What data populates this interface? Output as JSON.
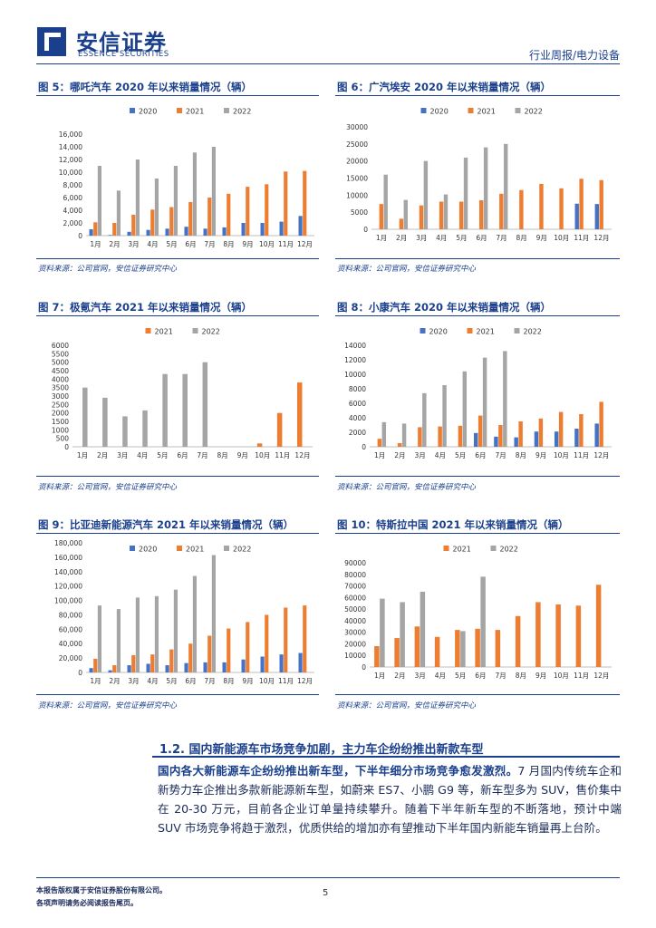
{
  "header": {
    "logo_cn": "安信证券",
    "logo_en": "ESSENCE SECURITIES",
    "report_type": "行业周报/电力设备"
  },
  "colors": {
    "s2020": "#4472c4",
    "s2021": "#ed7d31",
    "s2022": "#a5a5a5",
    "brand": "#1a3f8c"
  },
  "figures": [
    {
      "title": "图 5：哪吒汽车 2020 年以来销量情况（辆）",
      "source": "资料来源：公司官网，安信证券研究中心"
    },
    {
      "title": "图 6：广汽埃安 2020 年以来销量情况（辆）",
      "source": "资料来源：公司官网，安信证券研究中心"
    },
    {
      "title": "图 7：极氪汽车 2021 年以来销量情况（辆）",
      "source": "资料来源：公司官网，安信证券研究中心"
    },
    {
      "title": "图 8：小康汽车 2020 年以来销量情况（辆）",
      "source": "资料来源：公司官网，安信证券研究中心"
    },
    {
      "title": "图 9：比亚迪新能源汽车 2021 年以来销量情况（辆）",
      "source": "资料来源：公司官网，安信证券研究中心"
    },
    {
      "title": "图 10：特斯拉中国 2021 年以来销量情况（辆）",
      "source": "资料来源：公司官网，安信证券研究中心"
    }
  ],
  "chart_data": [
    {
      "type": "bar",
      "categories": [
        "1月",
        "2月",
        "3月",
        "4月",
        "5月",
        "6月",
        "7月",
        "8月",
        "9月",
        "10月",
        "11月",
        "12月"
      ],
      "yticks": [
        "0",
        "2,000",
        "4,000",
        "6,000",
        "8,000",
        "10,000",
        "12,000",
        "14,000",
        "16,000"
      ],
      "ylim": [
        0,
        16000
      ],
      "series": [
        {
          "name": "2020",
          "values": [
            1000,
            100,
            600,
            900,
            1100,
            1400,
            1100,
            1300,
            2000,
            2000,
            2200,
            3100
          ]
        },
        {
          "name": "2021",
          "values": [
            2100,
            2000,
            3300,
            4100,
            4500,
            5300,
            6000,
            6600,
            7700,
            8100,
            10100,
            10200
          ]
        },
        {
          "name": "2022",
          "values": [
            11000,
            7100,
            12000,
            9000,
            11000,
            13100,
            14000,
            null,
            null,
            null,
            null,
            null
          ]
        }
      ]
    },
    {
      "type": "bar",
      "categories": [
        "1月",
        "2月",
        "3月",
        "4月",
        "5月",
        "6月",
        "7月",
        "8月",
        "9月",
        "10月",
        "11月",
        "12月"
      ],
      "yticks": [
        "0",
        "5000",
        "10000",
        "15000",
        "20000",
        "25000",
        "30000"
      ],
      "ylim": [
        0,
        30000
      ],
      "series": [
        {
          "name": "2020",
          "values": [
            null,
            null,
            null,
            null,
            null,
            null,
            null,
            null,
            null,
            null,
            7500,
            7400
          ]
        },
        {
          "name": "2021",
          "values": [
            7400,
            3100,
            7000,
            8100,
            8100,
            8500,
            10400,
            11500,
            13300,
            12000,
            14800,
            14400
          ]
        },
        {
          "name": "2022",
          "values": [
            16000,
            8600,
            20000,
            10200,
            21000,
            24000,
            25000,
            null,
            null,
            null,
            null,
            null
          ]
        }
      ]
    },
    {
      "type": "bar",
      "categories": [
        "1月",
        "2月",
        "3月",
        "4月",
        "5月",
        "6月",
        "7月",
        "8月",
        "9月",
        "10月",
        "11月",
        "12月"
      ],
      "yticks": [
        "0",
        "500",
        "1000",
        "1500",
        "2000",
        "2500",
        "3000",
        "3500",
        "4000",
        "4500",
        "5000",
        "5500",
        "6000"
      ],
      "ylim": [
        0,
        6000
      ],
      "series": [
        {
          "name": "2021",
          "values": [
            null,
            null,
            null,
            null,
            null,
            null,
            null,
            null,
            null,
            200,
            2000,
            3800
          ]
        },
        {
          "name": "2022",
          "values": [
            3500,
            2900,
            1800,
            2150,
            4300,
            4300,
            5000,
            null,
            null,
            null,
            null,
            null
          ]
        }
      ]
    },
    {
      "type": "bar",
      "categories": [
        "1月",
        "2月",
        "3月",
        "4月",
        "5月",
        "6月",
        "7月",
        "8月",
        "9月",
        "10月",
        "11月",
        "12月"
      ],
      "yticks": [
        "0",
        "2000",
        "4000",
        "6000",
        "8000",
        "10000",
        "12000",
        "14000"
      ],
      "ylim": [
        0,
        14000
      ],
      "series": [
        {
          "name": "2020",
          "values": [
            null,
            null,
            null,
            null,
            null,
            1900,
            1400,
            1300,
            2100,
            2100,
            2500,
            3200
          ]
        },
        {
          "name": "2021",
          "values": [
            1100,
            500,
            2700,
            2800,
            2900,
            4300,
            3000,
            3500,
            3900,
            4800,
            4500,
            6200
          ]
        },
        {
          "name": "2022",
          "values": [
            3400,
            3200,
            7400,
            8500,
            10400,
            12300,
            13200,
            null,
            null,
            null,
            null,
            null
          ]
        }
      ]
    },
    {
      "type": "bar",
      "categories": [
        "1月",
        "2月",
        "3月",
        "4月",
        "5月",
        "6月",
        "7月",
        "8月",
        "9月",
        "10月",
        "11月",
        "12月"
      ],
      "yticks": [
        "0",
        "20,000",
        "40,000",
        "60,000",
        "80,000",
        "100,000",
        "120,000",
        "140,000",
        "160,000",
        "180,000"
      ],
      "ylim": [
        0,
        180000
      ],
      "series": [
        {
          "name": "2020",
          "values": [
            6000,
            3000,
            10000,
            12000,
            10000,
            13000,
            14000,
            14000,
            18000,
            22000,
            25000,
            27000
          ]
        },
        {
          "name": "2021",
          "values": [
            19000,
            10000,
            24000,
            25000,
            32000,
            40000,
            51000,
            61000,
            70000,
            80000,
            90000,
            93000
          ]
        },
        {
          "name": "2022",
          "values": [
            93000,
            88000,
            104000,
            106000,
            115000,
            134000,
            163000,
            null,
            null,
            null,
            null,
            null
          ]
        }
      ]
    },
    {
      "type": "bar",
      "categories": [
        "1月",
        "2月",
        "3月",
        "4月",
        "5月",
        "6月",
        "7月",
        "8月",
        "9月",
        "10月",
        "11月",
        "12月"
      ],
      "yticks": [
        "0",
        "10000",
        "20000",
        "30000",
        "40000",
        "50000",
        "60000",
        "70000",
        "80000",
        "90000"
      ],
      "ylim": [
        0,
        90000
      ],
      "series": [
        {
          "name": "2021",
          "values": [
            18000,
            25000,
            35000,
            26000,
            32000,
            33000,
            32000,
            44000,
            56000,
            54000,
            53000,
            71000
          ]
        },
        {
          "name": "2022",
          "values": [
            59000,
            56000,
            65000,
            null,
            31000,
            78000,
            null,
            null,
            null,
            null,
            null,
            null
          ]
        }
      ]
    }
  ],
  "section": {
    "title": "1.2. 国内新能源车市场竞争加剧，主力车企纷纷推出新款车型",
    "lead": "国内各大新能源车企纷纷推出新车型，下半年细分市场竞争愈发激烈。",
    "body": "7 月国内传统车企和新势力车企推出多款新能源新车型，如蔚来 ES7、小鹏 G9 等，新车型多为 SUV，售价集中在 20-30 万元，目前各企业订单量持续攀升。随着下半年新车型的不断落地，预计中端 SUV 市场竞争将趋于激烈，优质供给的增加亦有望推动下半年国内新能车销量再上台阶。"
  },
  "footer": {
    "line1": "本报告版权属于安信证券股份有限公司。",
    "line2": "各项声明请务必阅读报告尾页。",
    "page": "5"
  }
}
